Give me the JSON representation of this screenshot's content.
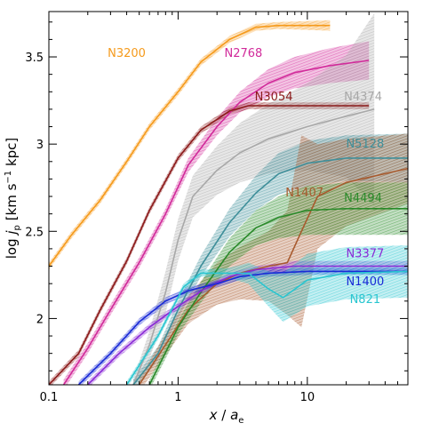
{
  "chart_data": {
    "type": "line",
    "xlabel": "x / a_e",
    "ylabel": "log j_p [km s^-1 kpc]",
    "xscale": "log",
    "xlim": [
      0.1,
      60
    ],
    "ylim": [
      1.62,
      3.76
    ],
    "grid": false,
    "legend": "none",
    "x_ticks": [
      {
        "value": 0.1,
        "label": "0.1"
      },
      {
        "value": 1,
        "label": "1"
      },
      {
        "value": 10,
        "label": "10"
      }
    ],
    "y_ticks": [
      {
        "value": 2,
        "label": "2"
      },
      {
        "value": 2.5,
        "label": "2.5"
      },
      {
        "value": 3,
        "label": "3"
      },
      {
        "value": 3.5,
        "label": "3.5"
      }
    ],
    "series": [
      {
        "name": "N3200",
        "color": "#f59a1b",
        "x": [
          0.1,
          0.15,
          0.25,
          0.4,
          0.6,
          1,
          1.5,
          2.5,
          4,
          6,
          10,
          15
        ],
        "y": [
          2.3,
          2.48,
          2.68,
          2.9,
          3.1,
          3.3,
          3.47,
          3.6,
          3.67,
          3.68,
          3.68,
          3.68
        ],
        "band": [
          0.02,
          0.02,
          0.02,
          0.02,
          0.02,
          0.02,
          0.02,
          0.02,
          0.02,
          0.02,
          0.025,
          0.03
        ]
      },
      {
        "name": "N2768",
        "color": "#d12a9a",
        "x": [
          0.13,
          0.2,
          0.3,
          0.5,
          0.8,
          1.2,
          2,
          3,
          5,
          8,
          15,
          30
        ],
        "y": [
          1.62,
          1.83,
          2.05,
          2.32,
          2.6,
          2.88,
          3.1,
          3.24,
          3.35,
          3.41,
          3.45,
          3.48
        ],
        "band": [
          0.03,
          0.03,
          0.03,
          0.03,
          0.03,
          0.04,
          0.05,
          0.06,
          0.08,
          0.09,
          0.1,
          0.11
        ]
      },
      {
        "name": "N3054",
        "color": "#8b1a1a",
        "x": [
          0.1,
          0.17,
          0.25,
          0.4,
          0.6,
          1,
          1.5,
          2.5,
          3.5,
          5,
          10,
          30
        ],
        "y": [
          1.62,
          1.8,
          2.05,
          2.33,
          2.62,
          2.92,
          3.08,
          3.19,
          3.22,
          3.22,
          3.22,
          3.22
        ],
        "band": [
          0.02,
          0.02,
          0.02,
          0.02,
          0.02,
          0.02,
          0.02,
          0.02,
          0.02,
          0.02,
          0.02,
          0.02
        ]
      },
      {
        "name": "N4374",
        "color": "#a8a8a8",
        "x": [
          0.45,
          0.6,
          0.8,
          1,
          1.3,
          2,
          3,
          5,
          10,
          20,
          33
        ],
        "y": [
          1.62,
          1.85,
          2.15,
          2.45,
          2.7,
          2.85,
          2.95,
          3.03,
          3.1,
          3.16,
          3.2
        ],
        "band": [
          0.03,
          0.08,
          0.12,
          0.12,
          0.12,
          0.14,
          0.17,
          0.2,
          0.25,
          0.35,
          0.55
        ]
      },
      {
        "name": "N5128",
        "color": "#3f8f9a",
        "x": [
          0.45,
          0.7,
          1,
          1.5,
          2.5,
          4,
          6,
          10,
          20,
          60
        ],
        "y": [
          1.62,
          1.8,
          2.05,
          2.3,
          2.55,
          2.72,
          2.83,
          2.89,
          2.92,
          2.92
        ],
        "band": [
          0.03,
          0.04,
          0.05,
          0.06,
          0.08,
          0.1,
          0.12,
          0.13,
          0.13,
          0.14
        ]
      },
      {
        "name": "N1407",
        "color": "#a85a2e",
        "x": [
          0.5,
          0.8,
          1.2,
          2,
          3,
          5,
          7,
          9,
          12,
          20,
          60
        ],
        "y": [
          1.62,
          1.85,
          2.05,
          2.2,
          2.26,
          2.3,
          2.32,
          2.5,
          2.7,
          2.78,
          2.86
        ],
        "band": [
          0.04,
          0.06,
          0.08,
          0.12,
          0.15,
          0.2,
          0.3,
          0.55,
          0.3,
          0.25,
          0.2
        ]
      },
      {
        "name": "N4494",
        "color": "#2a8a2a",
        "x": [
          0.6,
          1,
          1.5,
          2.5,
          4,
          6,
          10,
          20,
          60
        ],
        "y": [
          1.62,
          1.95,
          2.15,
          2.38,
          2.52,
          2.58,
          2.62,
          2.63,
          2.63
        ],
        "band": [
          0.03,
          0.04,
          0.06,
          0.08,
          0.1,
          0.12,
          0.14,
          0.15,
          0.15
        ]
      },
      {
        "name": "N3377",
        "color": "#8a2ad6",
        "x": [
          0.2,
          0.35,
          0.6,
          1,
          1.6,
          2.5,
          4,
          8,
          20,
          60
        ],
        "y": [
          1.62,
          1.8,
          1.95,
          2.07,
          2.17,
          2.24,
          2.28,
          2.3,
          2.3,
          2.3
        ],
        "band": [
          0.02,
          0.02,
          0.02,
          0.02,
          0.02,
          0.02,
          0.02,
          0.03,
          0.03,
          0.03
        ]
      },
      {
        "name": "N1400",
        "color": "#1a2ad6",
        "x": [
          0.17,
          0.3,
          0.5,
          0.8,
          1.2,
          2,
          3,
          5,
          10,
          20,
          60
        ],
        "y": [
          1.62,
          1.8,
          1.98,
          2.1,
          2.16,
          2.2,
          2.24,
          2.26,
          2.27,
          2.27,
          2.27
        ],
        "band": [
          0.02,
          0.02,
          0.02,
          0.02,
          0.02,
          0.02,
          0.02,
          0.02,
          0.02,
          0.02,
          0.02
        ]
      },
      {
        "name": "N821",
        "color": "#2ac6d0",
        "x": [
          0.4,
          0.7,
          1.1,
          1.5,
          2.5,
          3.5,
          5,
          6.5,
          10,
          20,
          60
        ],
        "y": [
          1.62,
          1.9,
          2.18,
          2.26,
          2.26,
          2.26,
          2.17,
          2.12,
          2.22,
          2.26,
          2.27
        ],
        "band": [
          0.02,
          0.02,
          0.02,
          0.02,
          0.03,
          0.06,
          0.1,
          0.14,
          0.15,
          0.15,
          0.15
        ]
      }
    ],
    "labels": [
      {
        "text": "N3200",
        "x": 0.4,
        "y": 3.5,
        "color": "#f59a1b"
      },
      {
        "text": "N2768",
        "x": 3.2,
        "y": 3.5,
        "color": "#d12a9a"
      },
      {
        "text": "N3054",
        "x": 5.5,
        "y": 3.25,
        "color": "#8b1a1a"
      },
      {
        "text": "N4374",
        "x": 27,
        "y": 3.25,
        "color": "#a8a8a8"
      },
      {
        "text": "N5128",
        "x": 28,
        "y": 2.98,
        "color": "#3f8f9a"
      },
      {
        "text": "N1407",
        "x": 9.5,
        "y": 2.7,
        "color": "#a85a2e"
      },
      {
        "text": "N4494",
        "x": 27,
        "y": 2.67,
        "color": "#2a8a2a"
      },
      {
        "text": "N3377",
        "x": 28,
        "y": 2.35,
        "color": "#8a2ad6"
      },
      {
        "text": "N1400",
        "x": 28,
        "y": 2.19,
        "color": "#1a2ad6"
      },
      {
        "text": "N821",
        "x": 28,
        "y": 2.09,
        "color": "#2ac6d0"
      }
    ]
  }
}
